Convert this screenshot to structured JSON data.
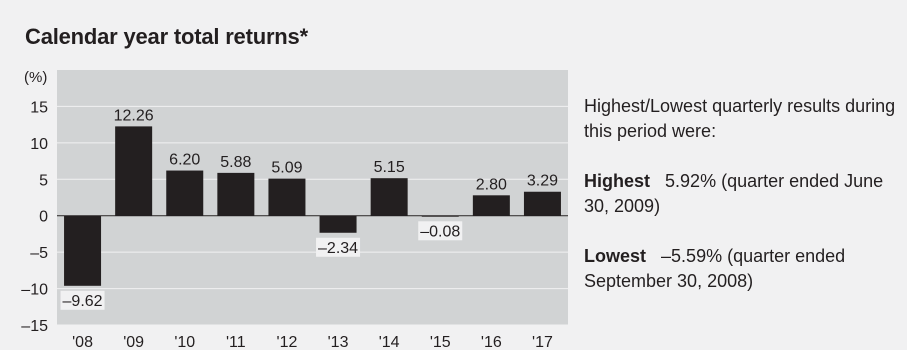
{
  "title": "Calendar year total returns*",
  "chart_data": {
    "type": "bar",
    "title": "Calendar year total returns*",
    "ylabel": "(%)",
    "xlabel": "",
    "categories": [
      "'08",
      "'09",
      "'10",
      "'11",
      "'12",
      "'13",
      "'14",
      "'15",
      "'16",
      "'17"
    ],
    "values": [
      -9.62,
      12.26,
      6.2,
      5.88,
      5.09,
      -2.34,
      5.15,
      -0.08,
      2.8,
      3.29
    ],
    "value_labels": [
      "–9.62",
      "12.26",
      "6.20",
      "5.88",
      "5.09",
      "–2.34",
      "5.15",
      "–0.08",
      "2.80",
      "3.29"
    ],
    "ylim": [
      -15,
      20
    ],
    "yticks": [
      15,
      10,
      5,
      0,
      -5,
      -10,
      -15
    ],
    "ytick_labels": [
      "15",
      "10",
      "5",
      "0",
      "–5",
      "–10",
      "–15"
    ],
    "grid": true,
    "colors": {
      "bar": "#231f20",
      "plot_bg": "#d1d3d4",
      "panel_bg": "#f1f1f2",
      "grid": "#f1f1f2"
    }
  },
  "sidebar": {
    "intro": "Highest/Lowest quarterly results during this period were:",
    "highest_label": "Highest",
    "highest_text": "5.92% (quarter ended June 30, 2009)",
    "lowest_label": "Lowest",
    "lowest_text": "–5.59% (quarter ended September 30, 2008)"
  }
}
